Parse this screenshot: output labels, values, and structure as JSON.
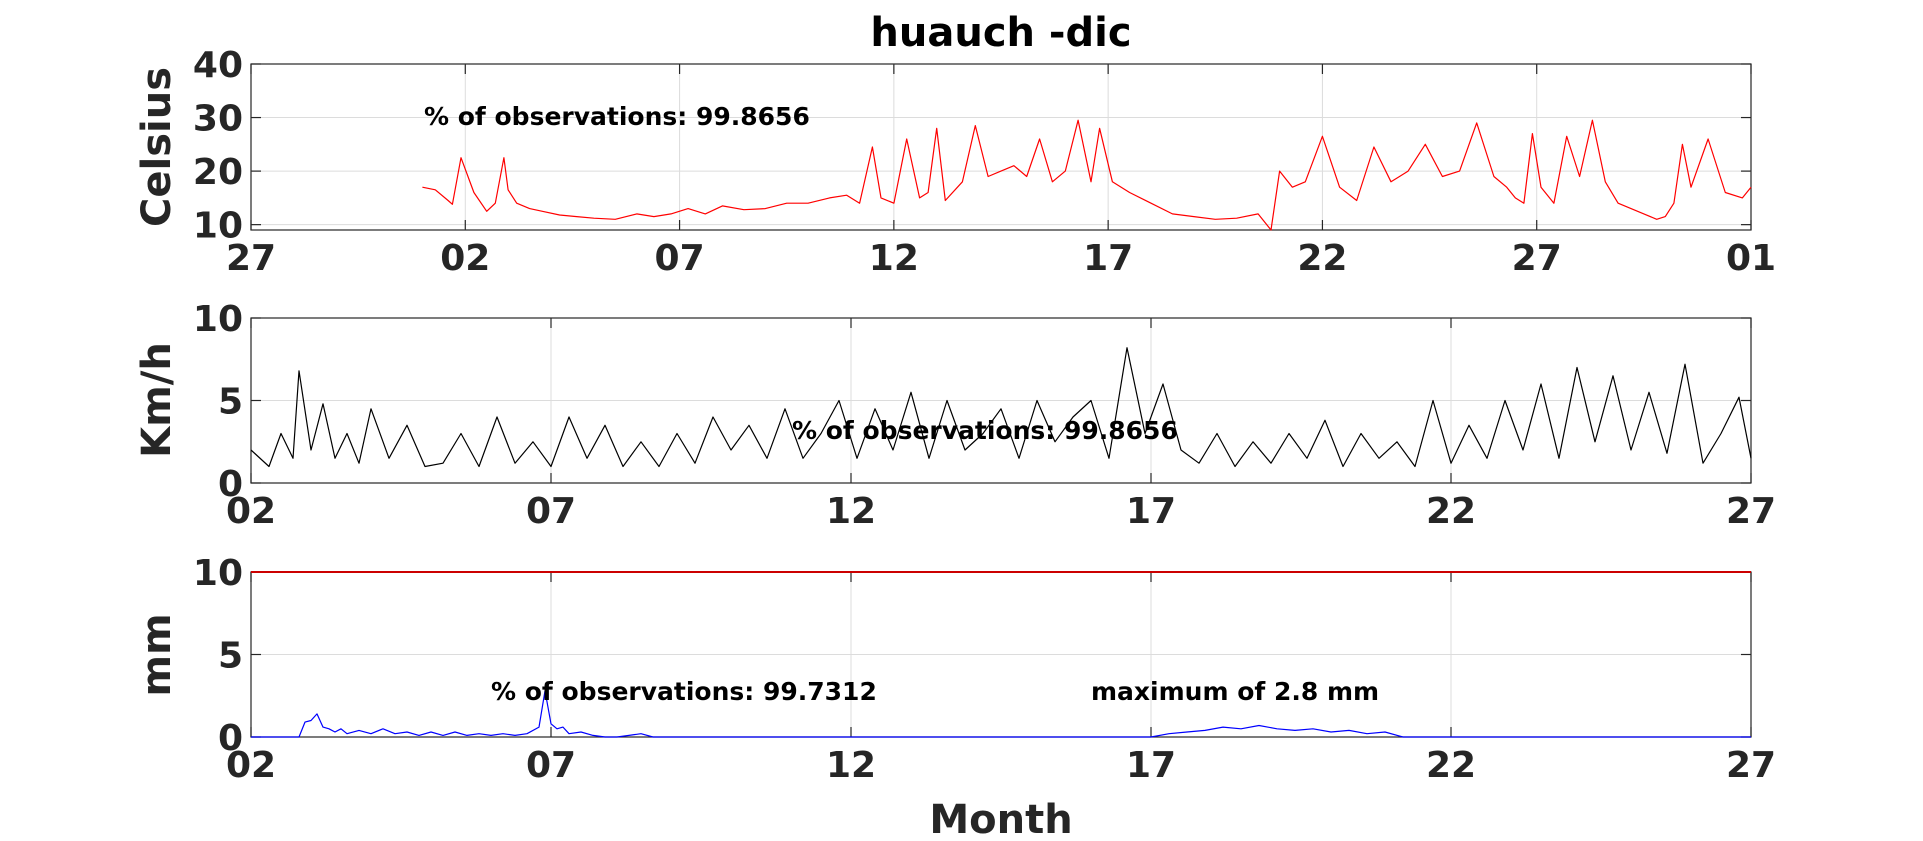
{
  "figure": {
    "title": "huauch -dic",
    "xlabel": "Month"
  },
  "colors": {
    "temperature": "#ff0000",
    "wind": "#000000",
    "precipitation": "#0000ff",
    "limit_line": "#cc0000"
  },
  "chart_data": [
    {
      "type": "line",
      "name": "temperature",
      "ylabel": "Celsius",
      "ylim": [
        9,
        40
      ],
      "yticks": [
        10,
        20,
        30,
        40
      ],
      "xlim": [
        0,
        35
      ],
      "xtick_values": [
        0,
        5,
        10,
        15,
        20,
        25,
        30,
        35
      ],
      "xtick_labels": [
        "27",
        "02",
        "07",
        "12",
        "17",
        "22",
        "27",
        "01"
      ],
      "grid": true,
      "annotation": "% of observations: 99.8656",
      "series": [
        {
          "name": "temperature",
          "x": [
            4.0,
            4.3,
            4.6,
            4.7,
            4.9,
            5.2,
            5.5,
            5.7,
            5.9,
            6.0,
            6.2,
            6.5,
            6.8,
            7.2,
            7.6,
            8.0,
            8.5,
            9.0,
            9.4,
            9.8,
            10.2,
            10.6,
            11.0,
            11.5,
            12.0,
            12.5,
            13.0,
            13.5,
            13.9,
            14.2,
            14.5,
            14.7,
            15.0,
            15.3,
            15.6,
            15.8,
            16.0,
            16.2,
            16.6,
            16.9,
            17.2,
            17.5,
            17.8,
            18.1,
            18.4,
            18.7,
            19.0,
            19.3,
            19.6,
            19.8,
            20.1,
            20.5,
            21.0,
            21.5,
            22.0,
            22.5,
            23.0,
            23.5,
            23.8,
            24.0,
            24.3,
            24.6,
            25.0,
            25.4,
            25.8,
            26.2,
            26.6,
            27.0,
            27.4,
            27.8,
            28.2,
            28.6,
            29.0,
            29.3,
            29.5,
            29.7,
            29.9,
            30.1,
            30.4,
            30.7,
            31.0,
            31.3,
            31.6,
            31.9,
            32.2,
            32.5,
            32.8,
            33.0,
            33.2,
            33.4,
            33.6,
            34.0,
            34.4,
            34.8,
            35.0
          ],
          "y": [
            17.0,
            16.5,
            14.5,
            13.8,
            22.5,
            16.0,
            12.5,
            14.0,
            22.5,
            16.5,
            14.0,
            13.0,
            12.5,
            11.8,
            11.5,
            11.2,
            11.0,
            12.0,
            11.5,
            12.0,
            13.0,
            12.0,
            13.5,
            12.8,
            13.0,
            14.0,
            14.0,
            15.0,
            15.5,
            14.0,
            24.5,
            15.0,
            14.0,
            26.0,
            15.0,
            16.0,
            28.0,
            14.5,
            18.0,
            28.5,
            19.0,
            20.0,
            21.0,
            19.0,
            26.0,
            18.0,
            20.0,
            29.5,
            18.0,
            28.0,
            18.0,
            16.0,
            14.0,
            12.0,
            11.5,
            11.0,
            11.2,
            12.0,
            9.0,
            20.0,
            17.0,
            18.0,
            26.5,
            17.0,
            14.5,
            24.5,
            18.0,
            20.0,
            25.0,
            19.0,
            20.0,
            29.0,
            19.0,
            17.0,
            15.0,
            14.0,
            27.0,
            17.0,
            14.0,
            26.5,
            19.0,
            29.5,
            18.0,
            14.0,
            13.0,
            12.0,
            11.0,
            11.5,
            14.0,
            25.0,
            17.0,
            26.0,
            16.0,
            15.0,
            17.0
          ]
        }
      ]
    },
    {
      "type": "line",
      "name": "wind",
      "ylabel": "Km/h",
      "ylim": [
        0,
        10
      ],
      "yticks": [
        0,
        5,
        10
      ],
      "xlim": [
        0,
        25
      ],
      "xtick_values": [
        0,
        5,
        10,
        15,
        20,
        25
      ],
      "xtick_labels": [
        "02",
        "07",
        "12",
        "17",
        "22",
        "27"
      ],
      "grid": true,
      "annotation": "% of observations: 99.8656",
      "series": [
        {
          "name": "wind",
          "x": [
            0.0,
            0.3,
            0.5,
            0.7,
            0.8,
            1.0,
            1.2,
            1.4,
            1.6,
            1.8,
            2.0,
            2.3,
            2.6,
            2.9,
            3.2,
            3.5,
            3.8,
            4.1,
            4.4,
            4.7,
            5.0,
            5.3,
            5.6,
            5.9,
            6.2,
            6.5,
            6.8,
            7.1,
            7.4,
            7.7,
            8.0,
            8.3,
            8.6,
            8.9,
            9.2,
            9.5,
            9.8,
            10.1,
            10.4,
            10.7,
            11.0,
            11.3,
            11.6,
            11.9,
            12.2,
            12.5,
            12.8,
            13.1,
            13.4,
            13.7,
            14.0,
            14.3,
            14.6,
            14.9,
            15.2,
            15.5,
            15.8,
            16.1,
            16.4,
            16.7,
            17.0,
            17.3,
            17.6,
            17.9,
            18.2,
            18.5,
            18.8,
            19.1,
            19.4,
            19.7,
            20.0,
            20.3,
            20.6,
            20.9,
            21.2,
            21.5,
            21.8,
            22.1,
            22.4,
            22.7,
            23.0,
            23.3,
            23.6,
            23.9,
            24.2,
            24.5,
            24.8,
            25.0
          ],
          "y": [
            2.0,
            1.0,
            3.0,
            1.5,
            6.8,
            2.0,
            4.8,
            1.5,
            3.0,
            1.2,
            4.5,
            1.5,
            3.5,
            1.0,
            1.2,
            3.0,
            1.0,
            4.0,
            1.2,
            2.5,
            1.0,
            4.0,
            1.5,
            3.5,
            1.0,
            2.5,
            1.0,
            3.0,
            1.2,
            4.0,
            2.0,
            3.5,
            1.5,
            4.5,
            1.5,
            3.0,
            5.0,
            1.5,
            4.5,
            2.0,
            5.5,
            1.5,
            5.0,
            2.0,
            3.0,
            4.5,
            1.5,
            5.0,
            2.5,
            4.0,
            5.0,
            1.5,
            8.2,
            3.0,
            6.0,
            2.0,
            1.2,
            3.0,
            1.0,
            2.5,
            1.2,
            3.0,
            1.5,
            3.8,
            1.0,
            3.0,
            1.5,
            2.5,
            1.0,
            5.0,
            1.2,
            3.5,
            1.5,
            5.0,
            2.0,
            6.0,
            1.5,
            7.0,
            2.5,
            6.5,
            2.0,
            5.5,
            1.8,
            7.2,
            1.2,
            3.0,
            5.2,
            1.5
          ]
        }
      ]
    },
    {
      "type": "line",
      "name": "precipitation",
      "ylabel": "mm",
      "ylim": [
        0,
        10
      ],
      "yticks": [
        0,
        5,
        10
      ],
      "xlim": [
        0,
        25
      ],
      "xtick_values": [
        0,
        5,
        10,
        15,
        20,
        25
      ],
      "xtick_labels": [
        "02",
        "07",
        "12",
        "17",
        "22",
        "27"
      ],
      "grid": true,
      "annotation": "% of observations: 99.7312",
      "annotation2": "maximum of 2.8 mm",
      "limit_value": 10,
      "series": [
        {
          "name": "precipitation",
          "x": [
            0.0,
            0.8,
            0.9,
            1.0,
            1.1,
            1.2,
            1.3,
            1.4,
            1.5,
            1.6,
            1.8,
            2.0,
            2.2,
            2.4,
            2.6,
            2.8,
            3.0,
            3.2,
            3.4,
            3.6,
            3.8,
            4.0,
            4.2,
            4.4,
            4.6,
            4.8,
            4.9,
            5.0,
            5.1,
            5.2,
            5.3,
            5.5,
            5.7,
            5.9,
            6.1,
            6.3,
            6.5,
            6.7,
            7.0,
            15.0,
            15.3,
            15.6,
            15.9,
            16.2,
            16.5,
            16.8,
            17.1,
            17.4,
            17.7,
            18.0,
            18.3,
            18.6,
            18.9,
            19.2,
            25.0
          ],
          "y": [
            0.0,
            0.0,
            0.9,
            1.0,
            1.4,
            0.6,
            0.5,
            0.3,
            0.5,
            0.2,
            0.4,
            0.2,
            0.5,
            0.2,
            0.3,
            0.1,
            0.3,
            0.1,
            0.3,
            0.1,
            0.2,
            0.1,
            0.2,
            0.1,
            0.2,
            0.6,
            2.8,
            0.8,
            0.5,
            0.6,
            0.2,
            0.3,
            0.1,
            0.0,
            0.0,
            0.1,
            0.2,
            0.0,
            0.0,
            0.0,
            0.2,
            0.3,
            0.4,
            0.6,
            0.5,
            0.7,
            0.5,
            0.4,
            0.5,
            0.3,
            0.4,
            0.2,
            0.3,
            0.0,
            0.0
          ]
        }
      ]
    }
  ]
}
